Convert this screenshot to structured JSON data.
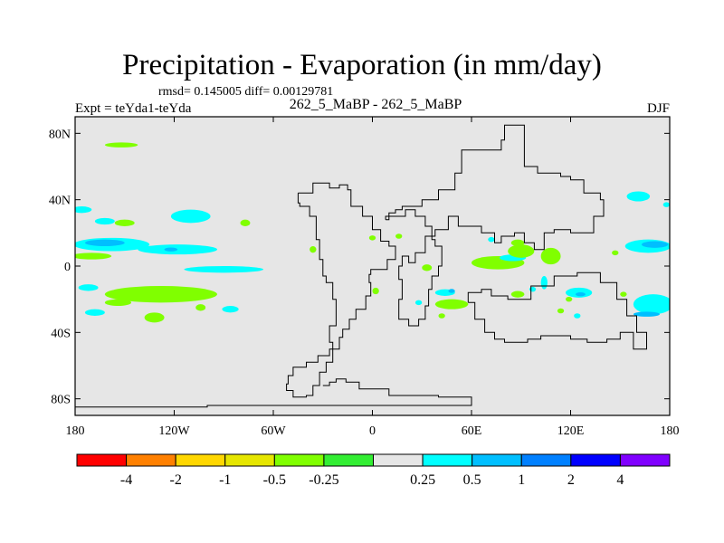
{
  "chart_data": {
    "type": "heatmap",
    "title": "Precipitation - Evaporation (in mm/day)",
    "stats_text": "rmsd= 0.145005  diff= 0.00129781",
    "left_subtitle": "Expt = teYda1-teYda",
    "center_subtitle": "262_5_MaBP - 262_5_MaBP",
    "right_subtitle": "DJF",
    "xlim": [
      -180,
      180
    ],
    "ylim": [
      -90,
      90
    ],
    "x_ticks": [
      {
        "value": -180,
        "label": "180"
      },
      {
        "value": -120,
        "label": "120W"
      },
      {
        "value": -60,
        "label": "60W"
      },
      {
        "value": 0,
        "label": "0"
      },
      {
        "value": 60,
        "label": "60E"
      },
      {
        "value": 120,
        "label": "120E"
      },
      {
        "value": 180,
        "label": "180"
      }
    ],
    "y_ticks": [
      {
        "value": 80,
        "label": "80N"
      },
      {
        "value": 40,
        "label": "40N"
      },
      {
        "value": 0,
        "label": "0"
      },
      {
        "value": -40,
        "label": "40S"
      },
      {
        "value": -80,
        "label": "80S"
      }
    ],
    "background_color": "#e6e6e6",
    "colorbar": {
      "colors": [
        "#ff0000",
        "#ff8000",
        "#ffd700",
        "#e6e600",
        "#80ff00",
        "#33ee33",
        "#e6e6e6",
        "#00ffff",
        "#00bfff",
        "#0080ff",
        "#0000ff",
        "#8000ff"
      ],
      "labels": [
        "-4",
        "-2",
        "-1",
        "-0.5",
        "-0.25",
        "0.25",
        "0.5",
        "1",
        "2",
        "4"
      ]
    },
    "regions": [
      {
        "lon": -152,
        "lat": 73,
        "rx": 10,
        "ry": 1.5,
        "level": "-0.25"
      },
      {
        "lon": -176,
        "lat": 34,
        "rx": 6,
        "ry": 2,
        "level": "0.25"
      },
      {
        "lon": -150,
        "lat": 26,
        "rx": 6,
        "ry": 2,
        "level": "-0.25"
      },
      {
        "lon": -162,
        "lat": 27,
        "rx": 6,
        "ry": 2,
        "level": "0.25"
      },
      {
        "lon": -110,
        "lat": 30,
        "rx": 12,
        "ry": 4,
        "level": "0.25"
      },
      {
        "lon": -77,
        "lat": 26,
        "rx": 3,
        "ry": 2,
        "level": "-0.25"
      },
      {
        "lon": -158,
        "lat": 13,
        "rx": 23,
        "ry": 4,
        "level": "0.25"
      },
      {
        "lon": -162,
        "lat": 14,
        "rx": 12,
        "ry": 2,
        "level": "0.5"
      },
      {
        "lon": -118,
        "lat": 10,
        "rx": 24,
        "ry": 3,
        "level": "0.25"
      },
      {
        "lon": -122,
        "lat": 10,
        "rx": 4,
        "ry": 1.2,
        "level": "0.5"
      },
      {
        "lon": -170,
        "lat": 6,
        "rx": 12,
        "ry": 2,
        "level": "-0.25"
      },
      {
        "lon": -90,
        "lat": -2,
        "rx": 24,
        "ry": 2,
        "level": "0.25"
      },
      {
        "lon": -128,
        "lat": -17,
        "rx": 34,
        "ry": 5,
        "level": "-0.25"
      },
      {
        "lon": -172,
        "lat": -13,
        "rx": 6,
        "ry": 2,
        "level": "0.25"
      },
      {
        "lon": -154,
        "lat": -22,
        "rx": 8,
        "ry": 2,
        "level": "-0.25"
      },
      {
        "lon": -168,
        "lat": -28,
        "rx": 6,
        "ry": 2,
        "level": "0.25"
      },
      {
        "lon": -132,
        "lat": -31,
        "rx": 6,
        "ry": 3,
        "level": "-0.25"
      },
      {
        "lon": -104,
        "lat": -25,
        "rx": 3,
        "ry": 2,
        "level": "-0.25"
      },
      {
        "lon": -86,
        "lat": -26,
        "rx": 5,
        "ry": 2,
        "level": "0.25"
      },
      {
        "lon": -36,
        "lat": 10,
        "rx": 2,
        "ry": 2,
        "level": "-0.25"
      },
      {
        "lon": 0,
        "lat": 17,
        "rx": 2,
        "ry": 1.5,
        "level": "-0.25"
      },
      {
        "lon": 16,
        "lat": 18,
        "rx": 2,
        "ry": 1.5,
        "level": "-0.25"
      },
      {
        "lon": 33,
        "lat": -1,
        "rx": 3,
        "ry": 2,
        "level": "-0.25"
      },
      {
        "lon": 2,
        "lat": -15,
        "rx": 2,
        "ry": 2,
        "level": "-0.25"
      },
      {
        "lon": 28,
        "lat": -22,
        "rx": 2,
        "ry": 1.5,
        "level": "0.25"
      },
      {
        "lon": 44,
        "lat": -16,
        "rx": 6,
        "ry": 2,
        "level": "0.25"
      },
      {
        "lon": 48,
        "lat": -15,
        "rx": 2,
        "ry": 1.2,
        "level": "0.5"
      },
      {
        "lon": 48,
        "lat": -23,
        "rx": 10,
        "ry": 3,
        "level": "-0.25"
      },
      {
        "lon": 42,
        "lat": -30,
        "rx": 2,
        "ry": 1.5,
        "level": "-0.25"
      },
      {
        "lon": 76,
        "lat": 2,
        "rx": 16,
        "ry": 4,
        "level": "-0.25"
      },
      {
        "lon": 85,
        "lat": 5,
        "rx": 8,
        "ry": 2,
        "level": "0.25"
      },
      {
        "lon": 90,
        "lat": 9,
        "rx": 8,
        "ry": 4,
        "level": "-0.25"
      },
      {
        "lon": 108,
        "lat": 6,
        "rx": 6,
        "ry": 5,
        "level": "-0.25"
      },
      {
        "lon": 72,
        "lat": 16,
        "rx": 2,
        "ry": 1.5,
        "level": "0.25"
      },
      {
        "lon": 88,
        "lat": 14,
        "rx": 4,
        "ry": 2,
        "level": "-0.25"
      },
      {
        "lon": 104,
        "lat": -10,
        "rx": 2,
        "ry": 4,
        "level": "0.25"
      },
      {
        "lon": 88,
        "lat": -17,
        "rx": 4,
        "ry": 2,
        "level": "-0.25"
      },
      {
        "lon": 97,
        "lat": -14,
        "rx": 2,
        "ry": 1.5,
        "level": "0.25"
      },
      {
        "lon": 125,
        "lat": -16,
        "rx": 8,
        "ry": 3,
        "level": "0.25"
      },
      {
        "lon": 126,
        "lat": -17,
        "rx": 3,
        "ry": 1.2,
        "level": "0.5"
      },
      {
        "lon": 119,
        "lat": -20,
        "rx": 2,
        "ry": 1.5,
        "level": "-0.25"
      },
      {
        "lon": 114,
        "lat": -27,
        "rx": 2,
        "ry": 1.5,
        "level": "-0.25"
      },
      {
        "lon": 124,
        "lat": -30,
        "rx": 2,
        "ry": 1.5,
        "level": "0.25"
      },
      {
        "lon": 170,
        "lat": -23,
        "rx": 12,
        "ry": 6,
        "level": "0.25"
      },
      {
        "lon": 166,
        "lat": -29,
        "rx": 8,
        "ry": 1.5,
        "level": "0.5"
      },
      {
        "lon": 161,
        "lat": 42,
        "rx": 7,
        "ry": 3,
        "level": "0.25"
      },
      {
        "lon": 178,
        "lat": 37,
        "rx": 2,
        "ry": 1.5,
        "level": "0.25"
      },
      {
        "lon": 167,
        "lat": 12,
        "rx": 14,
        "ry": 4,
        "level": "0.25"
      },
      {
        "lon": 171,
        "lat": 13,
        "rx": 8,
        "ry": 2,
        "level": "0.5"
      },
      {
        "lon": 147,
        "lat": 8,
        "rx": 2,
        "ry": 1.5,
        "level": "-0.25"
      },
      {
        "lon": 152,
        "lat": -17,
        "rx": 2,
        "ry": 1.5,
        "level": "-0.25"
      }
    ],
    "continents": [
      [
        [
          -45,
          44
        ],
        [
          -36,
          50
        ],
        [
          -26,
          47
        ],
        [
          -20,
          49
        ],
        [
          -15,
          46
        ],
        [
          -13,
          36
        ],
        [
          -6,
          30
        ],
        [
          0,
          22
        ],
        [
          5,
          15
        ],
        [
          10,
          12
        ],
        [
          14,
          4
        ],
        [
          9,
          -2
        ],
        [
          -1,
          -5
        ],
        [
          -2,
          -10
        ],
        [
          -1,
          -18
        ],
        [
          -4,
          -26
        ],
        [
          -10,
          -32
        ],
        [
          -14,
          -38
        ],
        [
          -18,
          -43
        ],
        [
          -20,
          -50
        ],
        [
          -26,
          -54
        ],
        [
          -33,
          -58
        ],
        [
          -40,
          -61
        ],
        [
          -48,
          -66
        ],
        [
          -51,
          -71
        ],
        [
          -52,
          -75
        ],
        [
          -48,
          -79
        ],
        [
          -40,
          -78
        ],
        [
          -36,
          -72
        ],
        [
          -32,
          -64
        ],
        [
          -28,
          -58
        ],
        [
          -24,
          -46
        ],
        [
          -26,
          -36
        ],
        [
          -22,
          -20
        ],
        [
          -24,
          -10
        ],
        [
          -28,
          -6
        ],
        [
          -30,
          4
        ],
        [
          -32,
          16
        ],
        [
          -34,
          20
        ],
        [
          -34,
          30
        ],
        [
          -38,
          36
        ],
        [
          -44,
          38
        ],
        [
          -45,
          44
        ]
      ],
      [
        [
          8,
          28
        ],
        [
          10,
          32
        ],
        [
          14,
          34
        ],
        [
          18,
          36
        ],
        [
          24,
          36
        ],
        [
          30,
          40
        ],
        [
          40,
          46
        ],
        [
          50,
          56
        ],
        [
          54,
          70
        ],
        [
          70,
          70
        ],
        [
          78,
          76
        ],
        [
          80,
          85
        ],
        [
          90,
          85
        ],
        [
          92,
          60
        ],
        [
          100,
          56
        ],
        [
          114,
          54
        ],
        [
          120,
          52
        ],
        [
          128,
          44
        ],
        [
          138,
          40
        ],
        [
          140,
          30
        ],
        [
          134,
          20
        ],
        [
          120,
          22
        ],
        [
          110,
          20
        ],
        [
          104,
          10
        ],
        [
          98,
          14
        ],
        [
          92,
          20
        ],
        [
          86,
          18
        ],
        [
          78,
          14
        ],
        [
          74,
          20
        ],
        [
          66,
          24
        ],
        [
          56,
          24
        ],
        [
          52,
          30
        ],
        [
          46,
          22
        ],
        [
          38,
          18
        ],
        [
          32,
          8
        ],
        [
          26,
          2
        ],
        [
          22,
          6
        ],
        [
          18,
          0
        ],
        [
          16,
          -8
        ],
        [
          18,
          -20
        ],
        [
          16,
          -32
        ],
        [
          22,
          -36
        ],
        [
          28,
          -32
        ],
        [
          32,
          -24
        ],
        [
          34,
          -14
        ],
        [
          36,
          -6
        ],
        [
          40,
          0
        ],
        [
          42,
          8
        ],
        [
          42,
          12
        ],
        [
          38,
          16
        ],
        [
          36,
          24
        ],
        [
          32,
          30
        ],
        [
          26,
          34
        ],
        [
          20,
          30
        ],
        [
          14,
          30
        ],
        [
          8,
          28
        ]
      ],
      [
        [
          58,
          -22
        ],
        [
          62,
          -32
        ],
        [
          68,
          -40
        ],
        [
          74,
          -44
        ],
        [
          80,
          -46
        ],
        [
          94,
          -44
        ],
        [
          102,
          -42
        ],
        [
          112,
          -42
        ],
        [
          120,
          -44
        ],
        [
          130,
          -46
        ],
        [
          142,
          -44
        ],
        [
          150,
          -40
        ],
        [
          158,
          -50
        ],
        [
          166,
          -50
        ],
        [
          166,
          -40
        ],
        [
          160,
          -30
        ],
        [
          154,
          -20
        ],
        [
          148,
          -10
        ],
        [
          138,
          -4
        ],
        [
          124,
          -6
        ],
        [
          110,
          -12
        ],
        [
          96,
          -20
        ],
        [
          82,
          -18
        ],
        [
          72,
          -14
        ],
        [
          66,
          -16
        ],
        [
          58,
          -22
        ]
      ],
      [
        [
          -30,
          -72
        ],
        [
          -26,
          -70
        ],
        [
          -22,
          -68
        ],
        [
          -16,
          -70
        ],
        [
          -8,
          -74
        ],
        [
          10,
          -78
        ],
        [
          40,
          -79
        ],
        [
          60,
          -80
        ],
        [
          60,
          -84
        ],
        [
          -20,
          -84
        ],
        [
          -50,
          -84
        ],
        [
          -100,
          -85
        ],
        [
          -180,
          -86
        ]
      ]
    ]
  }
}
